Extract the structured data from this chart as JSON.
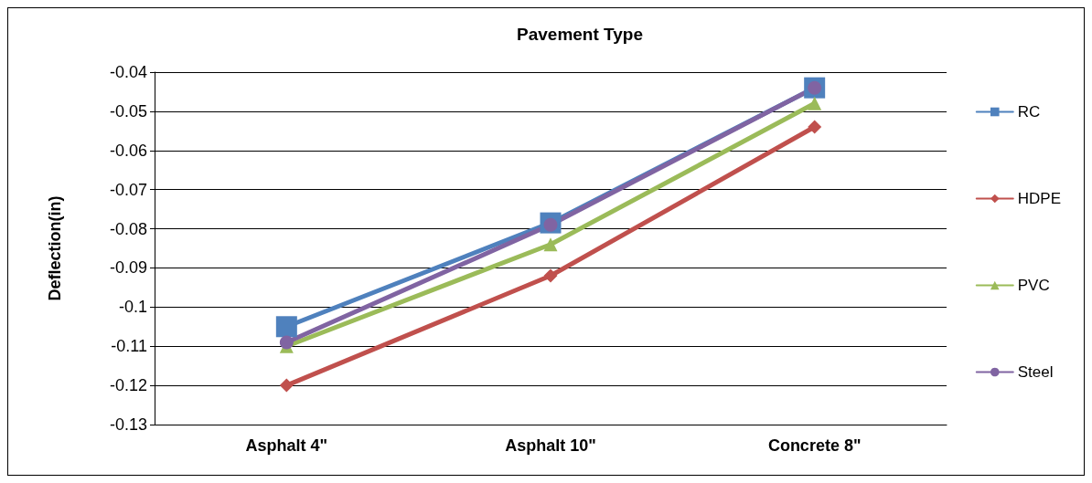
{
  "chart_data": {
    "type": "line",
    "title": "Pavement Type",
    "ylabel": "Deflection(in)",
    "categories": [
      "Asphalt 4\"",
      "Asphalt 10\"",
      "Concrete 8\""
    ],
    "series": [
      {
        "name": "RC",
        "color": "#4f81bd",
        "marker": "square",
        "values": [
          -0.105,
          -0.0785,
          -0.044
        ]
      },
      {
        "name": "HDPE",
        "color": "#c0504d",
        "marker": "diamond",
        "values": [
          -0.12,
          -0.092,
          -0.054
        ]
      },
      {
        "name": "PVC",
        "color": "#9bbb59",
        "marker": "triangle",
        "values": [
          -0.11,
          -0.084,
          -0.048
        ]
      },
      {
        "name": "Steel",
        "color": "#8064a2",
        "marker": "circle",
        "values": [
          -0.109,
          -0.079,
          -0.044
        ]
      }
    ],
    "ylim": [
      -0.13,
      -0.04
    ],
    "yticks": [
      -0.13,
      -0.12,
      -0.11,
      -0.1,
      -0.09,
      -0.08,
      -0.07,
      -0.06,
      -0.05,
      -0.04
    ],
    "grid": "y",
    "legend": "right",
    "line_style": "solid"
  }
}
